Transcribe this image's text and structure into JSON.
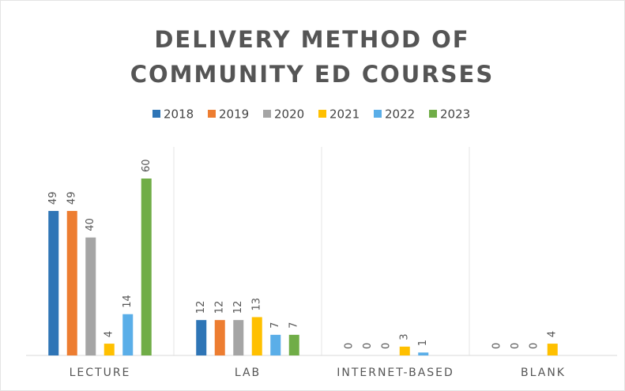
{
  "chart_data": {
    "type": "bar",
    "title": "DELIVERY METHOD OF COMMUNITY ED COURSES",
    "categories": [
      "LECTURE",
      "LAB",
      "INTERNET-BASED",
      "BLANK"
    ],
    "series": [
      {
        "name": "2018",
        "color": "#2e75b6",
        "values": [
          49,
          12,
          0,
          0
        ]
      },
      {
        "name": "2019",
        "color": "#ed7d31",
        "values": [
          49,
          12,
          0,
          0
        ]
      },
      {
        "name": "2020",
        "color": "#a5a5a5",
        "values": [
          40,
          12,
          0,
          0
        ]
      },
      {
        "name": "2021",
        "color": "#ffc000",
        "values": [
          4,
          13,
          3,
          4
        ]
      },
      {
        "name": "2022",
        "color": "#5aaee8",
        "values": [
          14,
          7,
          1,
          null
        ]
      },
      {
        "name": "2023",
        "color": "#70ad47",
        "values": [
          60,
          7,
          null,
          null
        ]
      }
    ],
    "legend": "top"
  }
}
